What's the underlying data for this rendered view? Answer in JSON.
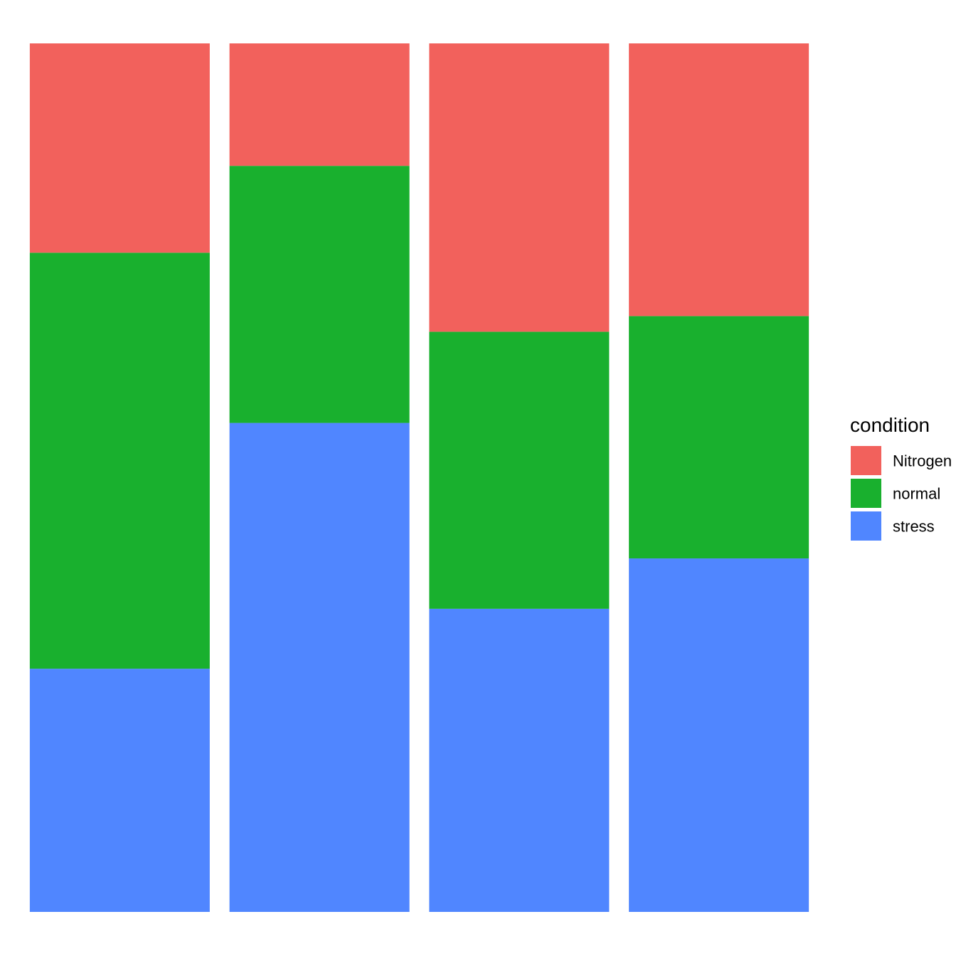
{
  "chart_data": {
    "type": "bar",
    "stacked": true,
    "normalized": true,
    "categories": [
      "",
      "",
      "",
      ""
    ],
    "series": [
      {
        "name": "Nitrogen",
        "color": "#F2615C",
        "values": [
          0.241,
          0.141,
          0.332,
          0.314
        ]
      },
      {
        "name": "normal",
        "color": "#19B02E",
        "values": [
          0.479,
          0.296,
          0.319,
          0.279
        ]
      },
      {
        "name": "stress",
        "color": "#5086FF",
        "values": [
          0.28,
          0.563,
          0.349,
          0.407
        ]
      }
    ],
    "ylim": [
      0,
      1
    ],
    "grid": false,
    "axes_visible": false,
    "legend": {
      "title": "condition",
      "position": "right",
      "entries": [
        "Nitrogen",
        "normal",
        "stress"
      ]
    }
  }
}
